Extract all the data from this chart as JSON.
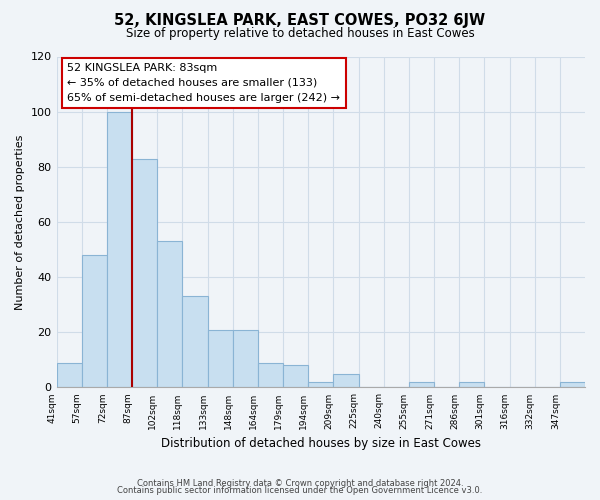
{
  "title": "52, KINGSLEA PARK, EAST COWES, PO32 6JW",
  "subtitle": "Size of property relative to detached houses in East Cowes",
  "xlabel": "Distribution of detached houses by size in East Cowes",
  "ylabel": "Number of detached properties",
  "footer_lines": [
    "Contains HM Land Registry data © Crown copyright and database right 2024.",
    "Contains public sector information licensed under the Open Government Licence v3.0."
  ],
  "bin_labels": [
    "41sqm",
    "57sqm",
    "72sqm",
    "87sqm",
    "102sqm",
    "118sqm",
    "133sqm",
    "148sqm",
    "164sqm",
    "179sqm",
    "194sqm",
    "209sqm",
    "225sqm",
    "240sqm",
    "255sqm",
    "271sqm",
    "286sqm",
    "301sqm",
    "316sqm",
    "332sqm",
    "347sqm"
  ],
  "bar_heights": [
    9,
    48,
    100,
    83,
    53,
    33,
    21,
    21,
    9,
    8,
    2,
    5,
    0,
    0,
    2,
    0,
    2,
    0,
    0,
    0,
    2
  ],
  "bar_color": "#c8dff0",
  "bar_edge_color": "#8ab4d4",
  "vline_color": "#aa0000",
  "annotation_box_text": "52 KINGSLEA PARK: 83sqm\n← 35% of detached houses are smaller (133)\n65% of semi-detached houses are larger (242) →",
  "ylim": [
    0,
    120
  ],
  "yticks": [
    0,
    20,
    40,
    60,
    80,
    100,
    120
  ],
  "grid_color": "#d0dce8",
  "background_color": "#f0f4f8"
}
